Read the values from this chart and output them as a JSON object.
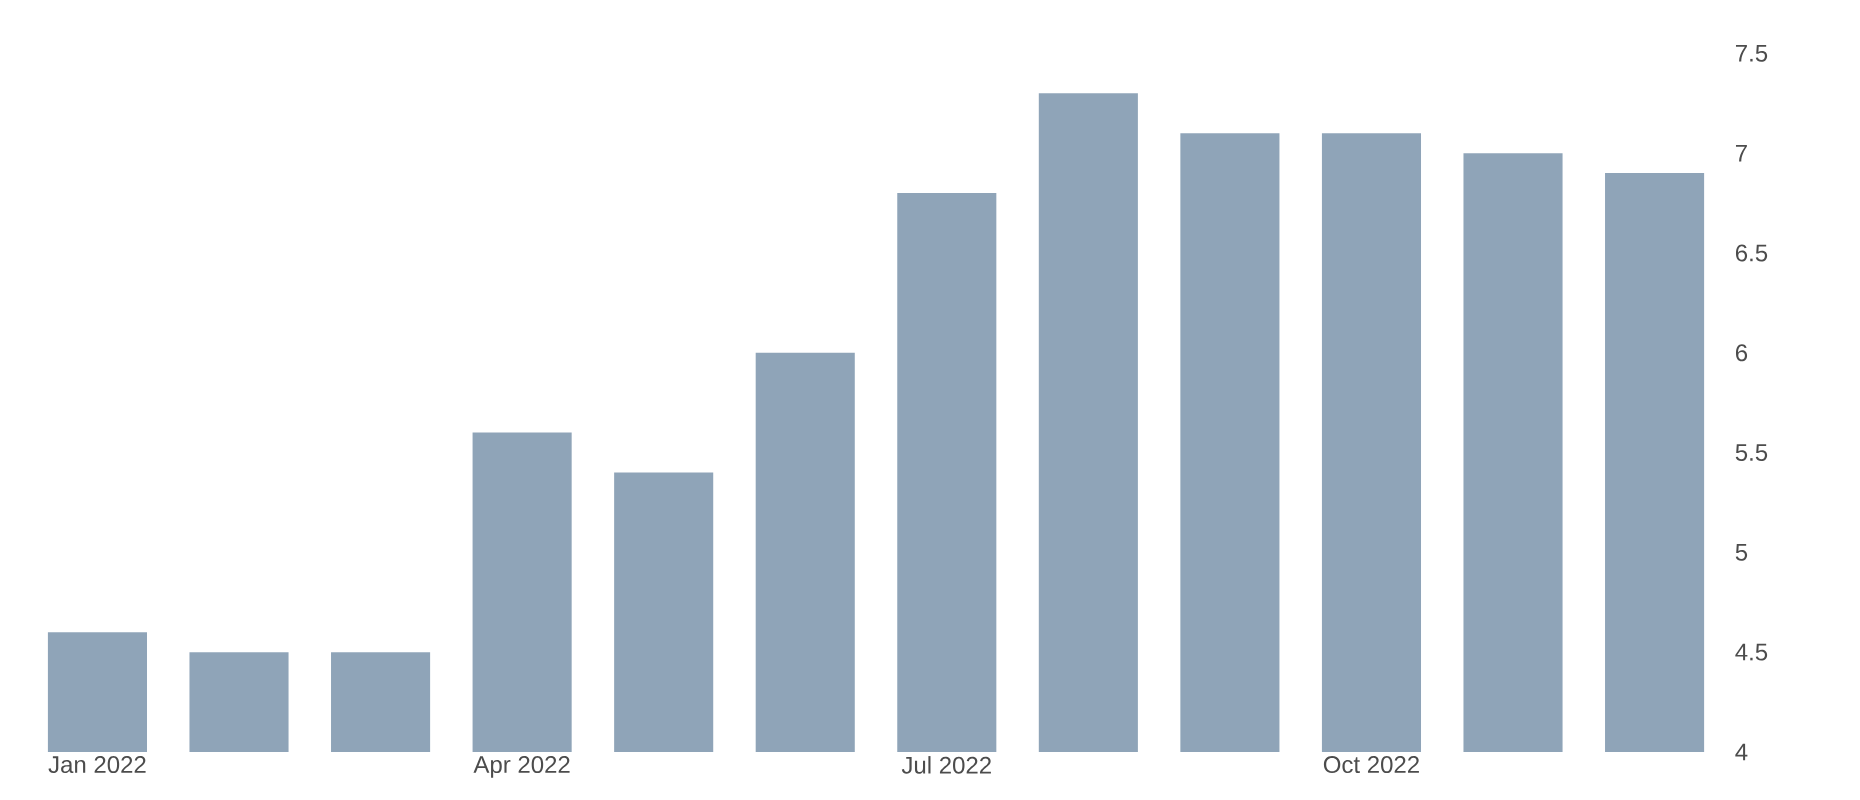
{
  "chart_data": {
    "type": "bar",
    "categories": [
      "Jan 2022",
      null,
      null,
      "Apr 2022",
      null,
      null,
      "Jul 2022",
      null,
      null,
      "Oct 2022",
      null,
      null
    ],
    "values": [
      4.6,
      4.5,
      4.5,
      5.6,
      5.4,
      6.0,
      6.8,
      7.3,
      7.1,
      7.1,
      7.0,
      6.9
    ],
    "color": "#8fa4b8",
    "ylim": [
      4,
      7.5
    ],
    "yticks": [
      4,
      4.5,
      5,
      5.5,
      6,
      6.5,
      7,
      7.5
    ],
    "grid": false
  }
}
